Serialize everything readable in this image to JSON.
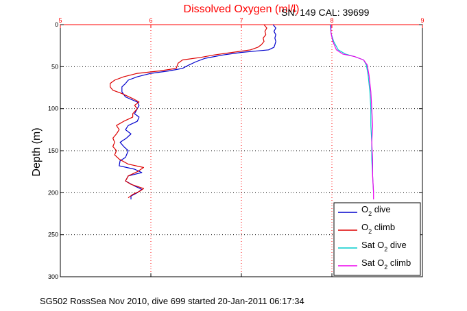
{
  "chart_data": {
    "type": "line",
    "title": "Dissolved Oxygen (ml/l)",
    "subtitle": "SN: 149  CAL: 39699",
    "xlabel": "",
    "ylabel": "Depth (m)",
    "xlim": [
      5,
      9
    ],
    "ylim": [
      0,
      300
    ],
    "y_reversed": true,
    "x_axis_position": "top",
    "x_ticks": [
      "5",
      "6",
      "7",
      "8",
      "9"
    ],
    "y_ticks": [
      "0",
      "50",
      "100",
      "150",
      "200",
      "250",
      "300"
    ],
    "grid": true,
    "legend_position": "bottom-right",
    "footer": "SG502 RossSea Nov 2010, dive 699 started 20-Jan-2011 06:17:34",
    "series": [
      {
        "name": "O2 dive",
        "name_parts": [
          "O",
          "2",
          " dive"
        ],
        "color": "#0000cc",
        "points": [
          [
            7.35,
            0
          ],
          [
            7.38,
            4
          ],
          [
            7.36,
            8
          ],
          [
            7.38,
            12
          ],
          [
            7.37,
            16
          ],
          [
            7.38,
            20
          ],
          [
            7.37,
            24
          ],
          [
            7.36,
            27
          ],
          [
            7.3,
            30
          ],
          [
            7.0,
            33
          ],
          [
            6.8,
            36
          ],
          [
            6.6,
            40
          ],
          [
            6.5,
            44
          ],
          [
            6.42,
            48
          ],
          [
            6.35,
            52
          ],
          [
            6.2,
            55
          ],
          [
            6.0,
            58
          ],
          [
            5.85,
            62
          ],
          [
            5.75,
            66
          ],
          [
            5.72,
            70
          ],
          [
            5.68,
            74
          ],
          [
            5.68,
            80
          ],
          [
            5.72,
            86
          ],
          [
            5.85,
            92
          ],
          [
            5.87,
            96
          ],
          [
            5.85,
            100
          ],
          [
            5.82,
            106
          ],
          [
            5.87,
            110
          ],
          [
            5.85,
            115
          ],
          [
            5.75,
            120
          ],
          [
            5.72,
            125
          ],
          [
            5.78,
            130
          ],
          [
            5.73,
            135
          ],
          [
            5.66,
            140
          ],
          [
            5.7,
            145
          ],
          [
            5.75,
            150
          ],
          [
            5.72,
            158
          ],
          [
            5.66,
            162
          ],
          [
            5.65,
            168
          ],
          [
            5.82,
            172
          ],
          [
            5.9,
            176
          ],
          [
            5.75,
            180
          ],
          [
            5.72,
            186
          ],
          [
            5.82,
            192
          ],
          [
            5.9,
            196
          ],
          [
            5.85,
            200
          ],
          [
            5.78,
            204
          ],
          [
            5.78,
            208
          ]
        ]
      },
      {
        "name": "O2 climb",
        "name_parts": [
          "O",
          "2",
          " climb"
        ],
        "color": "#dd0000",
        "points": [
          [
            7.25,
            0
          ],
          [
            7.28,
            4
          ],
          [
            7.26,
            8
          ],
          [
            7.27,
            12
          ],
          [
            7.24,
            16
          ],
          [
            7.25,
            20
          ],
          [
            7.22,
            24
          ],
          [
            7.18,
            27
          ],
          [
            7.1,
            30
          ],
          [
            6.9,
            33
          ],
          [
            6.7,
            36
          ],
          [
            6.55,
            39
          ],
          [
            6.35,
            42
          ],
          [
            6.3,
            46
          ],
          [
            6.28,
            52
          ],
          [
            6.1,
            55
          ],
          [
            5.85,
            58
          ],
          [
            5.7,
            62
          ],
          [
            5.6,
            66
          ],
          [
            5.55,
            70
          ],
          [
            5.55,
            74
          ],
          [
            5.58,
            78
          ],
          [
            5.68,
            82
          ],
          [
            5.8,
            88
          ],
          [
            5.87,
            92
          ],
          [
            5.82,
            96
          ],
          [
            5.85,
            100
          ],
          [
            5.8,
            106
          ],
          [
            5.8,
            110
          ],
          [
            5.7,
            115
          ],
          [
            5.62,
            120
          ],
          [
            5.65,
            125
          ],
          [
            5.62,
            130
          ],
          [
            5.58,
            135
          ],
          [
            5.6,
            140
          ],
          [
            5.58,
            145
          ],
          [
            5.62,
            150
          ],
          [
            5.6,
            155
          ],
          [
            5.65,
            160
          ],
          [
            5.75,
            166
          ],
          [
            5.92,
            170
          ],
          [
            5.85,
            175
          ],
          [
            5.75,
            180
          ],
          [
            5.72,
            186
          ],
          [
            5.78,
            190
          ],
          [
            5.92,
            195
          ],
          [
            5.88,
            198
          ],
          [
            5.8,
            202
          ],
          [
            5.75,
            206
          ]
        ]
      },
      {
        "name": "Sat O2 dive",
        "name_parts": [
          "Sat O",
          "2",
          " dive"
        ],
        "color": "#00cccc",
        "points": [
          [
            7.98,
            0
          ],
          [
            7.99,
            10
          ],
          [
            8.02,
            20
          ],
          [
            8.07,
            30
          ],
          [
            8.15,
            35
          ],
          [
            8.25,
            38
          ],
          [
            8.35,
            42
          ],
          [
            8.38,
            48
          ],
          [
            8.4,
            60
          ],
          [
            8.42,
            80
          ],
          [
            8.43,
            100
          ],
          [
            8.43,
            120
          ],
          [
            8.44,
            140
          ],
          [
            8.44,
            160
          ],
          [
            8.45,
            180
          ],
          [
            8.46,
            200
          ]
        ]
      },
      {
        "name": "Sat O2 climb",
        "name_parts": [
          "Sat O",
          "2",
          " climb"
        ],
        "color": "#ee00ee",
        "points": [
          [
            7.99,
            0
          ],
          [
            7.99,
            10
          ],
          [
            8.01,
            20
          ],
          [
            8.05,
            30
          ],
          [
            8.12,
            35
          ],
          [
            8.25,
            38
          ],
          [
            8.35,
            42
          ],
          [
            8.39,
            48
          ],
          [
            8.41,
            60
          ],
          [
            8.43,
            80
          ],
          [
            8.44,
            100
          ],
          [
            8.45,
            120
          ],
          [
            8.44,
            140
          ],
          [
            8.45,
            160
          ],
          [
            8.45,
            180
          ],
          [
            8.46,
            200
          ],
          [
            8.46,
            208
          ]
        ]
      }
    ]
  }
}
